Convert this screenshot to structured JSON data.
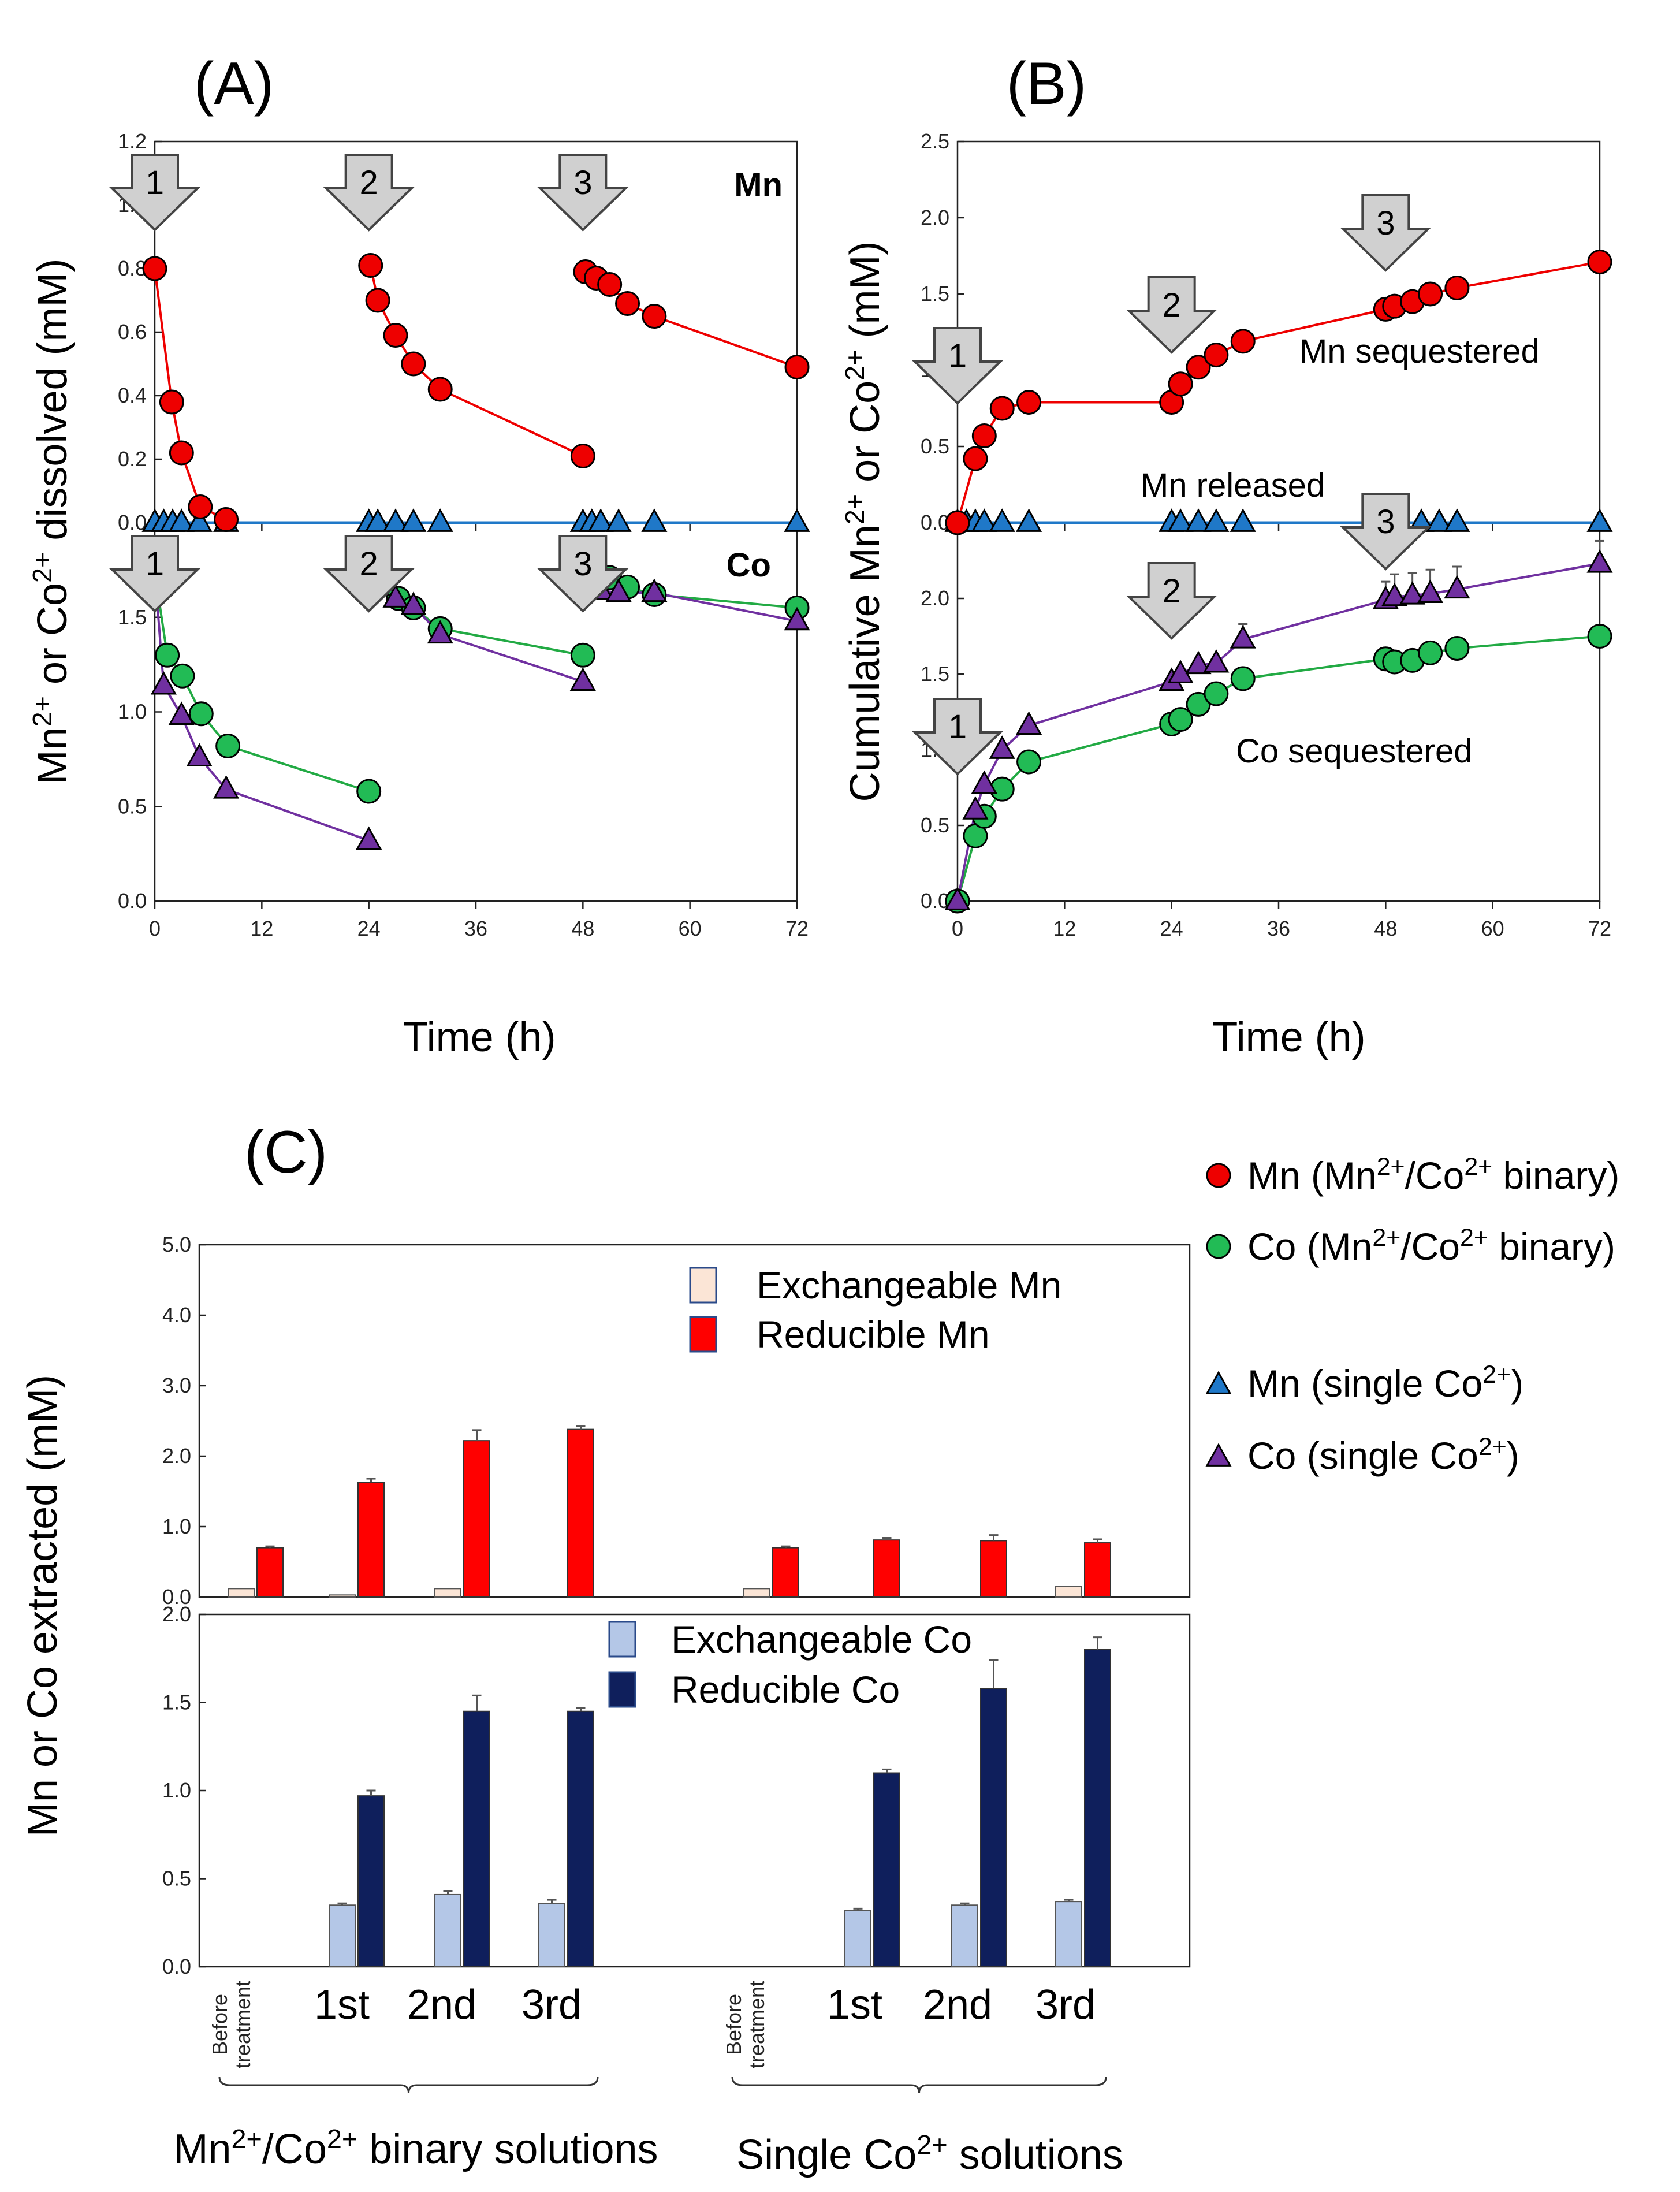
{
  "panels": {
    "a": "(A)",
    "b": "(B)",
    "c": "(C)"
  },
  "labels": {
    "time": "Time (h)",
    "a_ylabel": {
      "p1": "Mn",
      "s1": "2+",
      "p2": " or Co",
      "s2": "2+",
      "p3": " dissolved (mM)"
    },
    "b_ylabel": {
      "p1": "Cumulative Mn",
      "s1": "2+",
      "p2": " or Co",
      "s2": "2+",
      "p3": " (mM)"
    },
    "c_ylabel": "Mn or Co extracted (mM)",
    "mn_tag": "Mn",
    "co_tag": "Co",
    "mn_sequestered": "Mn sequestered",
    "mn_released": "Mn released",
    "co_sequestered": "Co sequestered",
    "arrows": [
      "1",
      "2",
      "3"
    ],
    "before1": "Before",
    "before2": "treatment",
    "group_binary": {
      "p1": "Mn",
      "s1": "2+",
      "p2": "/Co",
      "s2": "2+",
      "p3": " binary solutions"
    },
    "group_single": {
      "p1": "Single Co",
      "s1": "2+",
      "p2": " solutions"
    }
  },
  "colors": {
    "mn_binary": "#ee0000",
    "co_binary": "#22bb55",
    "co_line": "#22aa44",
    "mn_single": "#1f78c8",
    "co_single": "#7030a0",
    "exch_mn": "#fbe5d6",
    "red_mn": "#ff0000",
    "exch_co": "#b4c7e7",
    "red_co": "#0f1f5c",
    "arrow_fill": "#d0d0d0"
  },
  "legend": {
    "mn_binary": {
      "p1": "Mn (Mn",
      "s1": "2+",
      "p2": "/Co",
      "s2": "2+",
      "p3": " binary)"
    },
    "co_binary": {
      "p1": "Co (Mn",
      "s1": "2+",
      "p2": "/Co",
      "s2": "2+",
      "p3": " binary)"
    },
    "mn_single": {
      "p1": "Mn (single Co",
      "s1": "2+",
      "p3": ")"
    },
    "co_single": {
      "p1": "Co (single Co",
      "s1": "2+",
      "p3": ")"
    },
    "exch_mn": "Exchangeable Mn",
    "red_mn": "Reducible Mn",
    "exch_co": "Exchangeable Co",
    "red_co": "Reducible Co"
  },
  "chart_data": [
    {
      "id": "A-top",
      "type": "line",
      "xlabel": "Time (h)",
      "ylim": [
        0,
        1.2
      ],
      "yticks": [
        0,
        0.2,
        0.4,
        0.6,
        0.8,
        1.0,
        1.2
      ],
      "xlim": [
        0,
        72
      ],
      "xticks": [
        0,
        12,
        24,
        36,
        48,
        60,
        72
      ],
      "series": [
        {
          "name": "Mn (Mn2+/Co2+ binary)",
          "segments": [
            [
              [
                0,
                0.8
              ],
              [
                1.9,
                0.38
              ],
              [
                3,
                0.22
              ],
              [
                5.1,
                0.05
              ],
              [
                8,
                0.01
              ]
            ],
            [
              [
                24.2,
                0.81
              ],
              [
                25,
                0.7
              ],
              [
                27,
                0.59
              ],
              [
                29,
                0.5
              ],
              [
                32,
                0.42
              ],
              [
                48,
                0.21
              ]
            ],
            [
              [
                48.3,
                0.79
              ],
              [
                49.5,
                0.77
              ],
              [
                51,
                0.75
              ],
              [
                53,
                0.69
              ],
              [
                56,
                0.65
              ],
              [
                72,
                0.49
              ]
            ]
          ]
        },
        {
          "name": "Mn (single Co2+)",
          "segments": [
            [
              [
                0,
                0
              ],
              [
                1,
                0
              ],
              [
                2,
                0
              ],
              [
                3,
                0
              ],
              [
                5,
                0
              ],
              [
                8,
                0
              ],
              [
                24,
                0
              ],
              [
                25,
                0
              ],
              [
                27,
                0
              ],
              [
                29,
                0
              ],
              [
                32,
                0
              ],
              [
                48,
                0
              ],
              [
                49,
                0
              ],
              [
                50,
                0
              ],
              [
                52,
                0
              ],
              [
                56,
                0
              ],
              [
                72,
                0
              ]
            ]
          ]
        }
      ]
    },
    {
      "id": "A-bottom",
      "type": "line",
      "xlabel": "Time (h)",
      "ylim": [
        0,
        2.0
      ],
      "yticks": [
        0,
        0.5,
        1.0,
        1.5,
        2.0
      ],
      "xlim": [
        0,
        72
      ],
      "xticks": [
        0,
        12,
        24,
        36,
        48,
        60,
        72
      ],
      "series": [
        {
          "name": "Co (Mn2+/Co2+ binary)",
          "segments": [
            [
              [
                0,
                1.74
              ],
              [
                1.4,
                1.3
              ],
              [
                3.1,
                1.19
              ],
              [
                5.2,
                0.99
              ],
              [
                8.2,
                0.82
              ],
              [
                24,
                0.58
              ]
            ],
            [
              [
                24.3,
                1.74
              ],
              [
                25.5,
                1.69
              ],
              [
                27.3,
                1.6
              ],
              [
                29,
                1.55
              ],
              [
                32,
                1.44
              ],
              [
                48,
                1.3
              ]
            ],
            [
              [
                48.2,
                1.69
              ],
              [
                49.8,
                1.7
              ],
              [
                51,
                1.71
              ],
              [
                53,
                1.66
              ],
              [
                56,
                1.62
              ],
              [
                72,
                1.55
              ]
            ]
          ]
        },
        {
          "name": "Co (single Co2+)",
          "segments": [
            [
              [
                0,
                1.74
              ],
              [
                1,
                1.14
              ],
              [
                3,
                0.98
              ],
              [
                5,
                0.76
              ],
              [
                8,
                0.59
              ],
              [
                24,
                0.32
              ]
            ],
            [
              [
                24,
                1.71
              ],
              [
                25,
                1.66
              ],
              [
                27,
                1.6
              ],
              [
                29,
                1.56
              ],
              [
                32,
                1.41
              ],
              [
                48,
                1.16
              ]
            ],
            [
              [
                48,
                1.69
              ],
              [
                49,
                1.66
              ],
              [
                50,
                1.64
              ],
              [
                52,
                1.63
              ],
              [
                56,
                1.63
              ],
              [
                72,
                1.48
              ]
            ]
          ]
        }
      ]
    },
    {
      "id": "B-top",
      "type": "line",
      "xlabel": "Time (h)",
      "ylim": [
        0,
        2.5
      ],
      "yticks": [
        0,
        0.5,
        1.0,
        1.5,
        2.0,
        2.5
      ],
      "xlim": [
        0,
        72
      ],
      "xticks": [
        0,
        12,
        24,
        36,
        48,
        60,
        72
      ],
      "series": [
        {
          "name": "Mn sequestered",
          "points": [
            [
              0,
              0
            ],
            [
              2,
              0.42
            ],
            [
              3,
              0.57
            ],
            [
              5,
              0.75
            ],
            [
              8,
              0.79
            ],
            [
              24,
              0.79
            ],
            [
              25,
              0.91
            ],
            [
              27,
              1.02
            ],
            [
              29,
              1.1
            ],
            [
              32,
              1.19
            ],
            [
              48,
              1.4
            ],
            [
              49,
              1.42
            ],
            [
              51,
              1.45
            ],
            [
              53,
              1.5
            ],
            [
              56,
              1.54
            ],
            [
              72,
              1.71
            ]
          ]
        },
        {
          "name": "Mn released",
          "points": [
            [
              0,
              0
            ],
            [
              1,
              0
            ],
            [
              2,
              0
            ],
            [
              3,
              0
            ],
            [
              5,
              0
            ],
            [
              8,
              0
            ],
            [
              24,
              0
            ],
            [
              25,
              0
            ],
            [
              27,
              0
            ],
            [
              29,
              0
            ],
            [
              32,
              0
            ],
            [
              48,
              0
            ],
            [
              52,
              0
            ],
            [
              54,
              0
            ],
            [
              56,
              0
            ],
            [
              72,
              0
            ]
          ]
        }
      ]
    },
    {
      "id": "B-bottom",
      "type": "line",
      "xlabel": "Time (h)",
      "ylim": [
        0,
        2.5
      ],
      "yticks": [
        0,
        0.5,
        1.0,
        1.5,
        2.0,
        2.5
      ],
      "xlim": [
        0,
        72
      ],
      "xticks": [
        0,
        12,
        24,
        36,
        48,
        60,
        72
      ],
      "series": [
        {
          "name": "Co sequestered (binary)",
          "points": [
            [
              0,
              0
            ],
            [
              2,
              0.43
            ],
            [
              3,
              0.56
            ],
            [
              5,
              0.74
            ],
            [
              8,
              0.92
            ],
            [
              24,
              1.17
            ],
            [
              25,
              1.2
            ],
            [
              27,
              1.3
            ],
            [
              29,
              1.37
            ],
            [
              32,
              1.47
            ],
            [
              48,
              1.6
            ],
            [
              49,
              1.58
            ],
            [
              51,
              1.59
            ],
            [
              53,
              1.64
            ],
            [
              56,
              1.67
            ],
            [
              72,
              1.75
            ]
          ]
        },
        {
          "name": "Co sequestered (single)",
          "points": [
            [
              0,
              0
            ],
            [
              2,
              0.6
            ],
            [
              3,
              0.77
            ],
            [
              5,
              1.0
            ],
            [
              8,
              1.16
            ],
            [
              24,
              1.45
            ],
            [
              25,
              1.5
            ],
            [
              27,
              1.56
            ],
            [
              29,
              1.57
            ],
            [
              32,
              1.73
            ],
            [
              48,
              1.99
            ],
            [
              49,
              2.01
            ],
            [
              51,
              2.02
            ],
            [
              53,
              2.03
            ],
            [
              56,
              2.06
            ],
            [
              72,
              2.23
            ]
          ],
          "errors": [
            [
              32,
              0.1
            ],
            [
              48,
              0.12
            ],
            [
              49,
              0.15
            ],
            [
              51,
              0.15
            ],
            [
              53,
              0.16
            ],
            [
              56,
              0.15
            ],
            [
              72,
              0.15
            ]
          ]
        }
      ]
    },
    {
      "id": "C-top",
      "type": "bar",
      "ylabel": "Mn or Co extracted (mM)",
      "ylim": [
        0,
        5.0
      ],
      "yticks": [
        "0.0",
        "1.0",
        "2.0",
        "3.0",
        "4.0",
        "5.0"
      ],
      "categories": [
        "Before treatment",
        "1st",
        "2nd",
        "3rd",
        "Before treatment",
        "1st",
        "2nd",
        "3rd"
      ],
      "series": [
        {
          "name": "Exchangeable Mn",
          "values": [
            0.12,
            0.03,
            0.12,
            0.0,
            0.12,
            0.0,
            0.0,
            0.15
          ]
        },
        {
          "name": "Reducible Mn",
          "values": [
            0.7,
            1.63,
            2.22,
            2.38,
            0.7,
            0.81,
            0.8,
            0.77
          ],
          "errors": [
            0.02,
            0.05,
            0.15,
            0.05,
            0.02,
            0.03,
            0.08,
            0.05
          ]
        }
      ]
    },
    {
      "id": "C-bottom",
      "type": "bar",
      "ylim": [
        0,
        2.0
      ],
      "yticks": [
        "0.0",
        "0.5",
        "1.0",
        "1.5",
        "2.0"
      ],
      "categories": [
        "Before treatment",
        "1st",
        "2nd",
        "3rd",
        "Before treatment",
        "1st",
        "2nd",
        "3rd"
      ],
      "series": [
        {
          "name": "Exchangeable Co",
          "values": [
            0,
            0.35,
            0.41,
            0.36,
            0,
            0.32,
            0.35,
            0.37
          ],
          "errors": [
            0,
            0.01,
            0.02,
            0.02,
            0,
            0.01,
            0.01,
            0.01
          ]
        },
        {
          "name": "Reducible Co",
          "values": [
            0,
            0.97,
            1.45,
            1.45,
            0,
            1.1,
            1.58,
            1.8
          ],
          "errors": [
            0,
            0.03,
            0.09,
            0.02,
            0,
            0.02,
            0.16,
            0.07
          ]
        }
      ]
    }
  ]
}
